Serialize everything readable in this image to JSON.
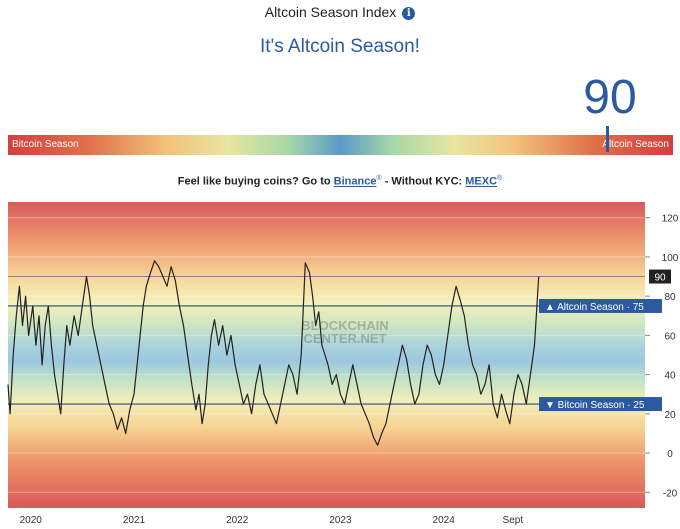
{
  "header": {
    "title": "Altcoin Season Index",
    "headline": "It's Altcoin Season!",
    "current_value": "90"
  },
  "season_bar": {
    "left_label": "Bitcoin Season",
    "right_label": "Altcoin Season"
  },
  "promo": {
    "prefix": "Feel like buying coins? Go to",
    "binance": "Binance",
    "middle": "- Without KYC:",
    "mexc": "MEXC",
    "mark": "®"
  },
  "watermark": {
    "line1": "BLOCKCHAIN",
    "line2": "CENTER.NET"
  },
  "colors": {
    "accent": "#2c5aa0",
    "line": "#222222"
  },
  "chart_data": {
    "type": "line",
    "y_ticks": [
      120,
      100,
      80,
      60,
      40,
      20,
      0,
      -20
    ],
    "ylim": [
      -28,
      128
    ],
    "x_ticks": [
      {
        "label": "2020",
        "x": 2020.0
      },
      {
        "label": "2021",
        "x": 2021.0
      },
      {
        "label": "2022",
        "x": 2022.0
      },
      {
        "label": "2023",
        "x": 2023.0
      },
      {
        "label": "2024",
        "x": 2024.0
      },
      {
        "label": "Sept",
        "x": 2024.67
      }
    ],
    "xlim": [
      2019.78,
      2025.95
    ],
    "thresholds": [
      {
        "label": "Altcoin Season",
        "value": 75,
        "symbol": "▲"
      },
      {
        "label": "Bitcoin Season",
        "value": 25,
        "symbol": "▼"
      }
    ],
    "current": {
      "value": 90,
      "label": "90"
    },
    "series": [
      {
        "points": [
          [
            2019.78,
            35
          ],
          [
            2019.8,
            20
          ],
          [
            2019.83,
            50
          ],
          [
            2019.86,
            70
          ],
          [
            2019.89,
            85
          ],
          [
            2019.92,
            65
          ],
          [
            2019.95,
            80
          ],
          [
            2019.98,
            60
          ],
          [
            2020.02,
            75
          ],
          [
            2020.05,
            55
          ],
          [
            2020.08,
            70
          ],
          [
            2020.11,
            45
          ],
          [
            2020.14,
            65
          ],
          [
            2020.17,
            75
          ],
          [
            2020.2,
            55
          ],
          [
            2020.23,
            40
          ],
          [
            2020.26,
            30
          ],
          [
            2020.29,
            20
          ],
          [
            2020.32,
            45
          ],
          [
            2020.35,
            65
          ],
          [
            2020.38,
            55
          ],
          [
            2020.42,
            70
          ],
          [
            2020.46,
            60
          ],
          [
            2020.5,
            75
          ],
          [
            2020.54,
            90
          ],
          [
            2020.57,
            80
          ],
          [
            2020.6,
            65
          ],
          [
            2020.64,
            55
          ],
          [
            2020.68,
            45
          ],
          [
            2020.72,
            35
          ],
          [
            2020.76,
            25
          ],
          [
            2020.8,
            20
          ],
          [
            2020.84,
            12
          ],
          [
            2020.88,
            18
          ],
          [
            2020.92,
            10
          ],
          [
            2020.96,
            22
          ],
          [
            2021.0,
            30
          ],
          [
            2021.03,
            45
          ],
          [
            2021.06,
            60
          ],
          [
            2021.09,
            75
          ],
          [
            2021.12,
            85
          ],
          [
            2021.16,
            92
          ],
          [
            2021.2,
            98
          ],
          [
            2021.24,
            95
          ],
          [
            2021.28,
            90
          ],
          [
            2021.32,
            85
          ],
          [
            2021.36,
            95
          ],
          [
            2021.4,
            88
          ],
          [
            2021.44,
            75
          ],
          [
            2021.48,
            65
          ],
          [
            2021.52,
            50
          ],
          [
            2021.56,
            35
          ],
          [
            2021.6,
            22
          ],
          [
            2021.63,
            30
          ],
          [
            2021.66,
            15
          ],
          [
            2021.69,
            25
          ],
          [
            2021.72,
            45
          ],
          [
            2021.75,
            60
          ],
          [
            2021.78,
            68
          ],
          [
            2021.82,
            55
          ],
          [
            2021.86,
            65
          ],
          [
            2021.9,
            50
          ],
          [
            2021.94,
            60
          ],
          [
            2021.98,
            45
          ],
          [
            2022.02,
            35
          ],
          [
            2022.06,
            25
          ],
          [
            2022.1,
            30
          ],
          [
            2022.14,
            20
          ],
          [
            2022.18,
            35
          ],
          [
            2022.22,
            45
          ],
          [
            2022.26,
            30
          ],
          [
            2022.3,
            25
          ],
          [
            2022.34,
            20
          ],
          [
            2022.38,
            15
          ],
          [
            2022.42,
            25
          ],
          [
            2022.46,
            35
          ],
          [
            2022.5,
            45
          ],
          [
            2022.54,
            40
          ],
          [
            2022.58,
            30
          ],
          [
            2022.62,
            50
          ],
          [
            2022.66,
            97
          ],
          [
            2022.7,
            92
          ],
          [
            2022.73,
            80
          ],
          [
            2022.76,
            65
          ],
          [
            2022.79,
            72
          ],
          [
            2022.82,
            55
          ],
          [
            2022.85,
            50
          ],
          [
            2022.88,
            45
          ],
          [
            2022.92,
            35
          ],
          [
            2022.96,
            40
          ],
          [
            2023.0,
            30
          ],
          [
            2023.04,
            25
          ],
          [
            2023.08,
            35
          ],
          [
            2023.12,
            45
          ],
          [
            2023.16,
            35
          ],
          [
            2023.2,
            25
          ],
          [
            2023.24,
            20
          ],
          [
            2023.28,
            15
          ],
          [
            2023.32,
            8
          ],
          [
            2023.36,
            4
          ],
          [
            2023.4,
            10
          ],
          [
            2023.44,
            15
          ],
          [
            2023.48,
            25
          ],
          [
            2023.52,
            35
          ],
          [
            2023.56,
            45
          ],
          [
            2023.6,
            55
          ],
          [
            2023.64,
            48
          ],
          [
            2023.68,
            35
          ],
          [
            2023.72,
            25
          ],
          [
            2023.76,
            30
          ],
          [
            2023.8,
            45
          ],
          [
            2023.84,
            55
          ],
          [
            2023.88,
            50
          ],
          [
            2023.92,
            40
          ],
          [
            2023.96,
            35
          ],
          [
            2024.0,
            45
          ],
          [
            2024.04,
            60
          ],
          [
            2024.08,
            75
          ],
          [
            2024.12,
            85
          ],
          [
            2024.16,
            78
          ],
          [
            2024.2,
            70
          ],
          [
            2024.24,
            55
          ],
          [
            2024.28,
            45
          ],
          [
            2024.32,
            40
          ],
          [
            2024.36,
            30
          ],
          [
            2024.4,
            35
          ],
          [
            2024.44,
            45
          ],
          [
            2024.48,
            25
          ],
          [
            2024.52,
            18
          ],
          [
            2024.56,
            30
          ],
          [
            2024.6,
            22
          ],
          [
            2024.64,
            15
          ],
          [
            2024.68,
            30
          ],
          [
            2024.72,
            40
          ],
          [
            2024.76,
            35
          ],
          [
            2024.8,
            25
          ],
          [
            2024.84,
            40
          ],
          [
            2024.88,
            55
          ],
          [
            2024.92,
            90
          ]
        ]
      }
    ]
  }
}
